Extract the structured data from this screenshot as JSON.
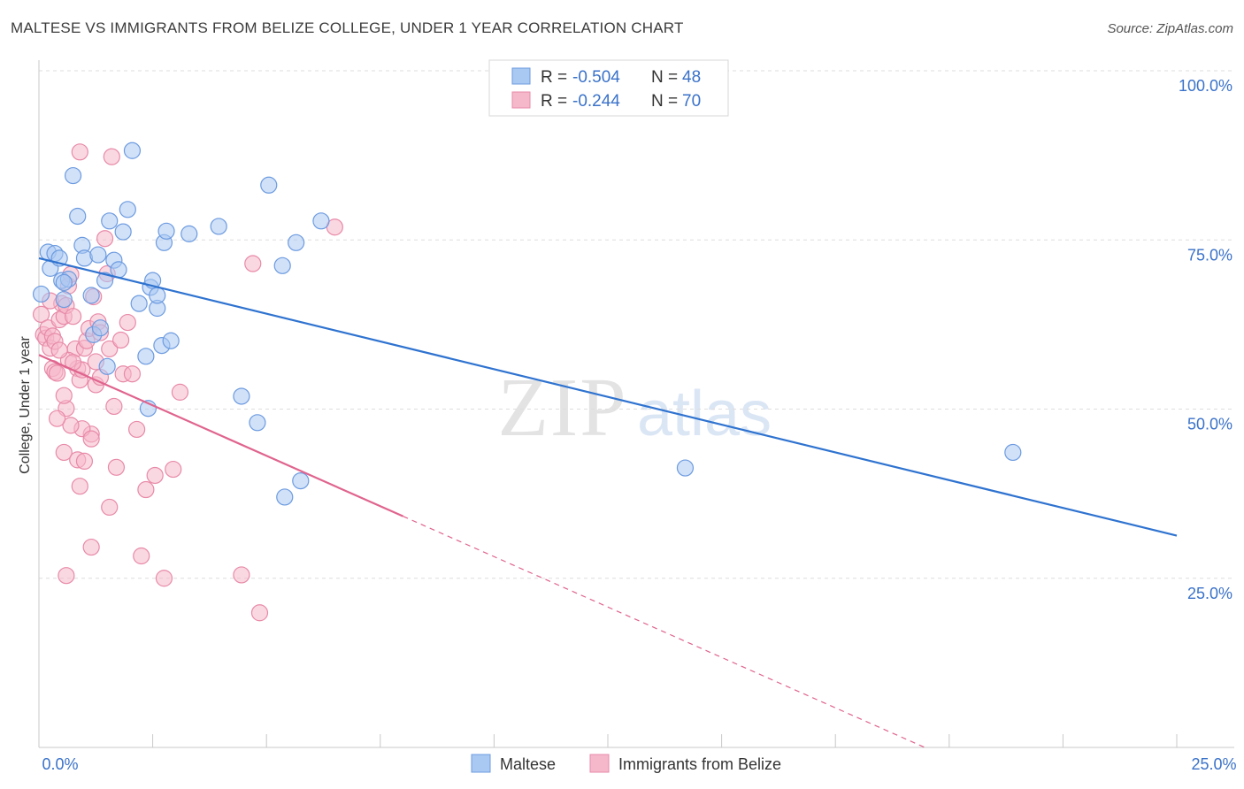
{
  "header": {
    "title": "MALTESE VS IMMIGRANTS FROM BELIZE COLLEGE, UNDER 1 YEAR CORRELATION CHART",
    "source": "Source: ZipAtlas.com"
  },
  "watermark": {
    "zip": "ZIP",
    "atlas": "atlas"
  },
  "legend_box": [
    {
      "r_label": "R = ",
      "r_value": "-0.504",
      "n_label": "N = ",
      "n_value": "48"
    },
    {
      "r_label": "R = ",
      "r_value": "-0.244",
      "n_label": "N = ",
      "n_value": "70"
    }
  ],
  "colors": {
    "blue_fill": "#a9c8f2",
    "blue_stroke": "#6d9be0",
    "blue_line": "#2f73d0",
    "pink_fill": "#f5b8cb",
    "pink_stroke": "#e88aa8",
    "pink_line": "#e0648e",
    "value_text": "#3a72c9",
    "grid": "#dddddd"
  },
  "chart_data": {
    "type": "scatter",
    "title": "MALTESE VS IMMIGRANTS FROM BELIZE COLLEGE, UNDER 1 YEAR CORRELATION CHART",
    "xlabel": "",
    "ylabel": "College, Under 1 year",
    "xlim": [
      0,
      25
    ],
    "ylim": [
      0,
      100
    ],
    "x_tick_labels": [
      "0.0%",
      "25.0%"
    ],
    "y_ticks": [
      25,
      50,
      75,
      100
    ],
    "y_tick_labels": [
      "25.0%",
      "50.0%",
      "75.0%",
      "100.0%"
    ],
    "legend": [
      "Maltese",
      "Immigrants from Belize"
    ],
    "series": [
      {
        "name": "Maltese",
        "r": -0.504,
        "n": 48,
        "trend": {
          "x": [
            0,
            25
          ],
          "y": [
            72.3,
            31.3
          ],
          "solid_until": 25
        },
        "points": [
          [
            0.05,
            67.0
          ],
          [
            0.2,
            73.2
          ],
          [
            0.25,
            70.8
          ],
          [
            0.35,
            73.0
          ],
          [
            0.45,
            72.3
          ],
          [
            0.5,
            69.0
          ],
          [
            0.55,
            66.2
          ],
          [
            0.65,
            69.2
          ],
          [
            0.75,
            84.5
          ],
          [
            0.85,
            78.5
          ],
          [
            0.95,
            74.2
          ],
          [
            1.0,
            72.3
          ],
          [
            1.15,
            66.8
          ],
          [
            1.2,
            61.0
          ],
          [
            1.3,
            72.8
          ],
          [
            1.45,
            69.0
          ],
          [
            1.55,
            77.8
          ],
          [
            1.65,
            72.0
          ],
          [
            1.75,
            70.6
          ],
          [
            1.85,
            76.2
          ],
          [
            1.95,
            79.5
          ],
          [
            2.05,
            88.2
          ],
          [
            2.2,
            65.6
          ],
          [
            2.35,
            57.8
          ],
          [
            2.45,
            68.0
          ],
          [
            2.5,
            69.0
          ],
          [
            2.6,
            64.9
          ],
          [
            2.7,
            59.4
          ],
          [
            2.75,
            74.6
          ],
          [
            2.8,
            76.3
          ],
          [
            2.9,
            60.1
          ],
          [
            3.3,
            75.9
          ],
          [
            3.95,
            77.0
          ],
          [
            4.45,
            51.9
          ],
          [
            4.8,
            48.0
          ],
          [
            5.05,
            83.1
          ],
          [
            5.35,
            71.2
          ],
          [
            5.65,
            74.6
          ],
          [
            5.75,
            39.4
          ],
          [
            6.2,
            77.8
          ],
          [
            1.5,
            56.3
          ],
          [
            2.4,
            50.1
          ],
          [
            1.35,
            62.0
          ],
          [
            0.55,
            68.7
          ],
          [
            2.6,
            66.8
          ],
          [
            14.2,
            41.3
          ],
          [
            21.4,
            43.6
          ],
          [
            5.4,
            37.0
          ]
        ]
      },
      {
        "name": "Immigrants from Belize",
        "r": -0.244,
        "n": 70,
        "trend": {
          "x": [
            0,
            25
          ],
          "y": [
            58.0,
            -16.5
          ],
          "solid_until": 8.0
        },
        "points": [
          [
            0.05,
            64.0
          ],
          [
            0.1,
            61.0
          ],
          [
            0.15,
            60.5
          ],
          [
            0.2,
            62.0
          ],
          [
            0.25,
            59.0
          ],
          [
            0.3,
            60.8
          ],
          [
            0.35,
            60.0
          ],
          [
            0.3,
            56.0
          ],
          [
            0.35,
            55.5
          ],
          [
            0.4,
            55.3
          ],
          [
            0.45,
            63.2
          ],
          [
            0.5,
            65.6
          ],
          [
            0.55,
            63.7
          ],
          [
            0.6,
            65.3
          ],
          [
            0.65,
            68.2
          ],
          [
            0.7,
            69.9
          ],
          [
            0.75,
            63.7
          ],
          [
            0.8,
            58.9
          ],
          [
            0.85,
            56.0
          ],
          [
            0.9,
            54.3
          ],
          [
            0.95,
            55.8
          ],
          [
            1.0,
            59.0
          ],
          [
            1.05,
            60.1
          ],
          [
            1.1,
            61.9
          ],
          [
            1.15,
            46.3
          ],
          [
            1.2,
            66.6
          ],
          [
            1.25,
            53.6
          ],
          [
            1.3,
            62.9
          ],
          [
            1.35,
            61.3
          ],
          [
            1.45,
            75.2
          ],
          [
            1.5,
            70.0
          ],
          [
            1.55,
            58.9
          ],
          [
            1.6,
            87.3
          ],
          [
            1.65,
            50.4
          ],
          [
            1.7,
            41.4
          ],
          [
            1.8,
            60.2
          ],
          [
            1.85,
            55.2
          ],
          [
            1.95,
            62.8
          ],
          [
            2.05,
            55.2
          ],
          [
            2.15,
            47.0
          ],
          [
            2.25,
            28.3
          ],
          [
            2.35,
            38.1
          ],
          [
            2.55,
            40.2
          ],
          [
            2.75,
            25.0
          ],
          [
            2.95,
            41.1
          ],
          [
            3.1,
            52.5
          ],
          [
            0.55,
            43.6
          ],
          [
            0.85,
            42.5
          ],
          [
            0.9,
            38.6
          ],
          [
            0.6,
            25.4
          ],
          [
            1.15,
            29.6
          ],
          [
            1.55,
            35.5
          ],
          [
            0.95,
            47.1
          ],
          [
            1.15,
            45.6
          ],
          [
            0.6,
            50.1
          ],
          [
            0.65,
            57.2
          ],
          [
            0.9,
            88.0
          ],
          [
            4.7,
            71.5
          ],
          [
            4.45,
            25.5
          ],
          [
            4.85,
            19.9
          ],
          [
            6.5,
            76.9
          ],
          [
            0.45,
            58.7
          ],
          [
            0.55,
            52.0
          ],
          [
            0.7,
            47.6
          ],
          [
            1.35,
            54.7
          ],
          [
            0.25,
            66.0
          ],
          [
            0.4,
            48.6
          ],
          [
            1.0,
            42.3
          ],
          [
            0.75,
            56.9
          ],
          [
            1.25,
            57.0
          ]
        ]
      }
    ]
  }
}
